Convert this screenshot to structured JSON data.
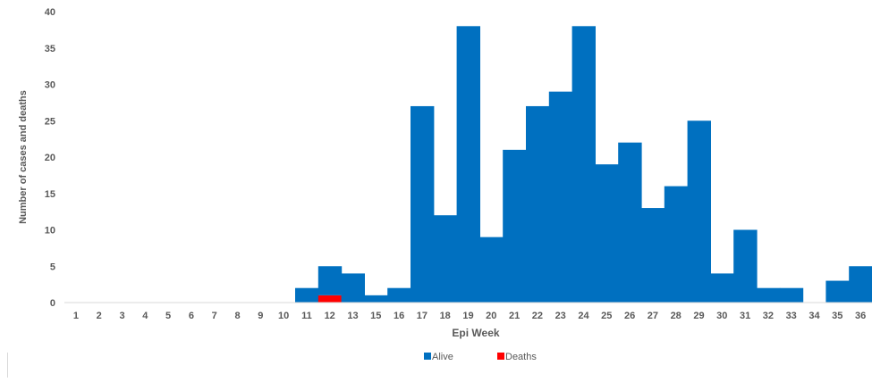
{
  "chart_data": {
    "type": "bar",
    "stacked": true,
    "categories": [
      "1",
      "2",
      "3",
      "4",
      "5",
      "6",
      "7",
      "8",
      "9",
      "10",
      "11",
      "12",
      "13",
      "15",
      "16",
      "17",
      "18",
      "19",
      "20",
      "21",
      "22",
      "23",
      "24",
      "25",
      "26",
      "27",
      "28",
      "29",
      "30",
      "31",
      "32",
      "33",
      "34",
      "35",
      "36"
    ],
    "series": [
      {
        "name": "Alive",
        "color": "#0070C0",
        "values": [
          0,
          0,
          0,
          0,
          0,
          0,
          0,
          0,
          0,
          0,
          2,
          4,
          4,
          1,
          2,
          27,
          12,
          38,
          9,
          21,
          27,
          29,
          38,
          19,
          22,
          13,
          16,
          25,
          4,
          10,
          2,
          2,
          0,
          3,
          5
        ]
      },
      {
        "name": "Deaths",
        "color": "#FF0000",
        "values": [
          0,
          0,
          0,
          0,
          0,
          0,
          0,
          0,
          0,
          0,
          0,
          1,
          0,
          0,
          0,
          0,
          0,
          0,
          0,
          0,
          0,
          0,
          0,
          0,
          0,
          0,
          0,
          0,
          0,
          0,
          0,
          0,
          0,
          0,
          0
        ]
      }
    ],
    "xlabel": "Epi Week",
    "ylabel": "Number of cases and deaths",
    "ylim": [
      0,
      40
    ],
    "yticks": [
      "0",
      "5",
      "10",
      "15",
      "20",
      "25",
      "30",
      "35",
      "40"
    ],
    "grid": false,
    "legend_position": "bottom"
  }
}
